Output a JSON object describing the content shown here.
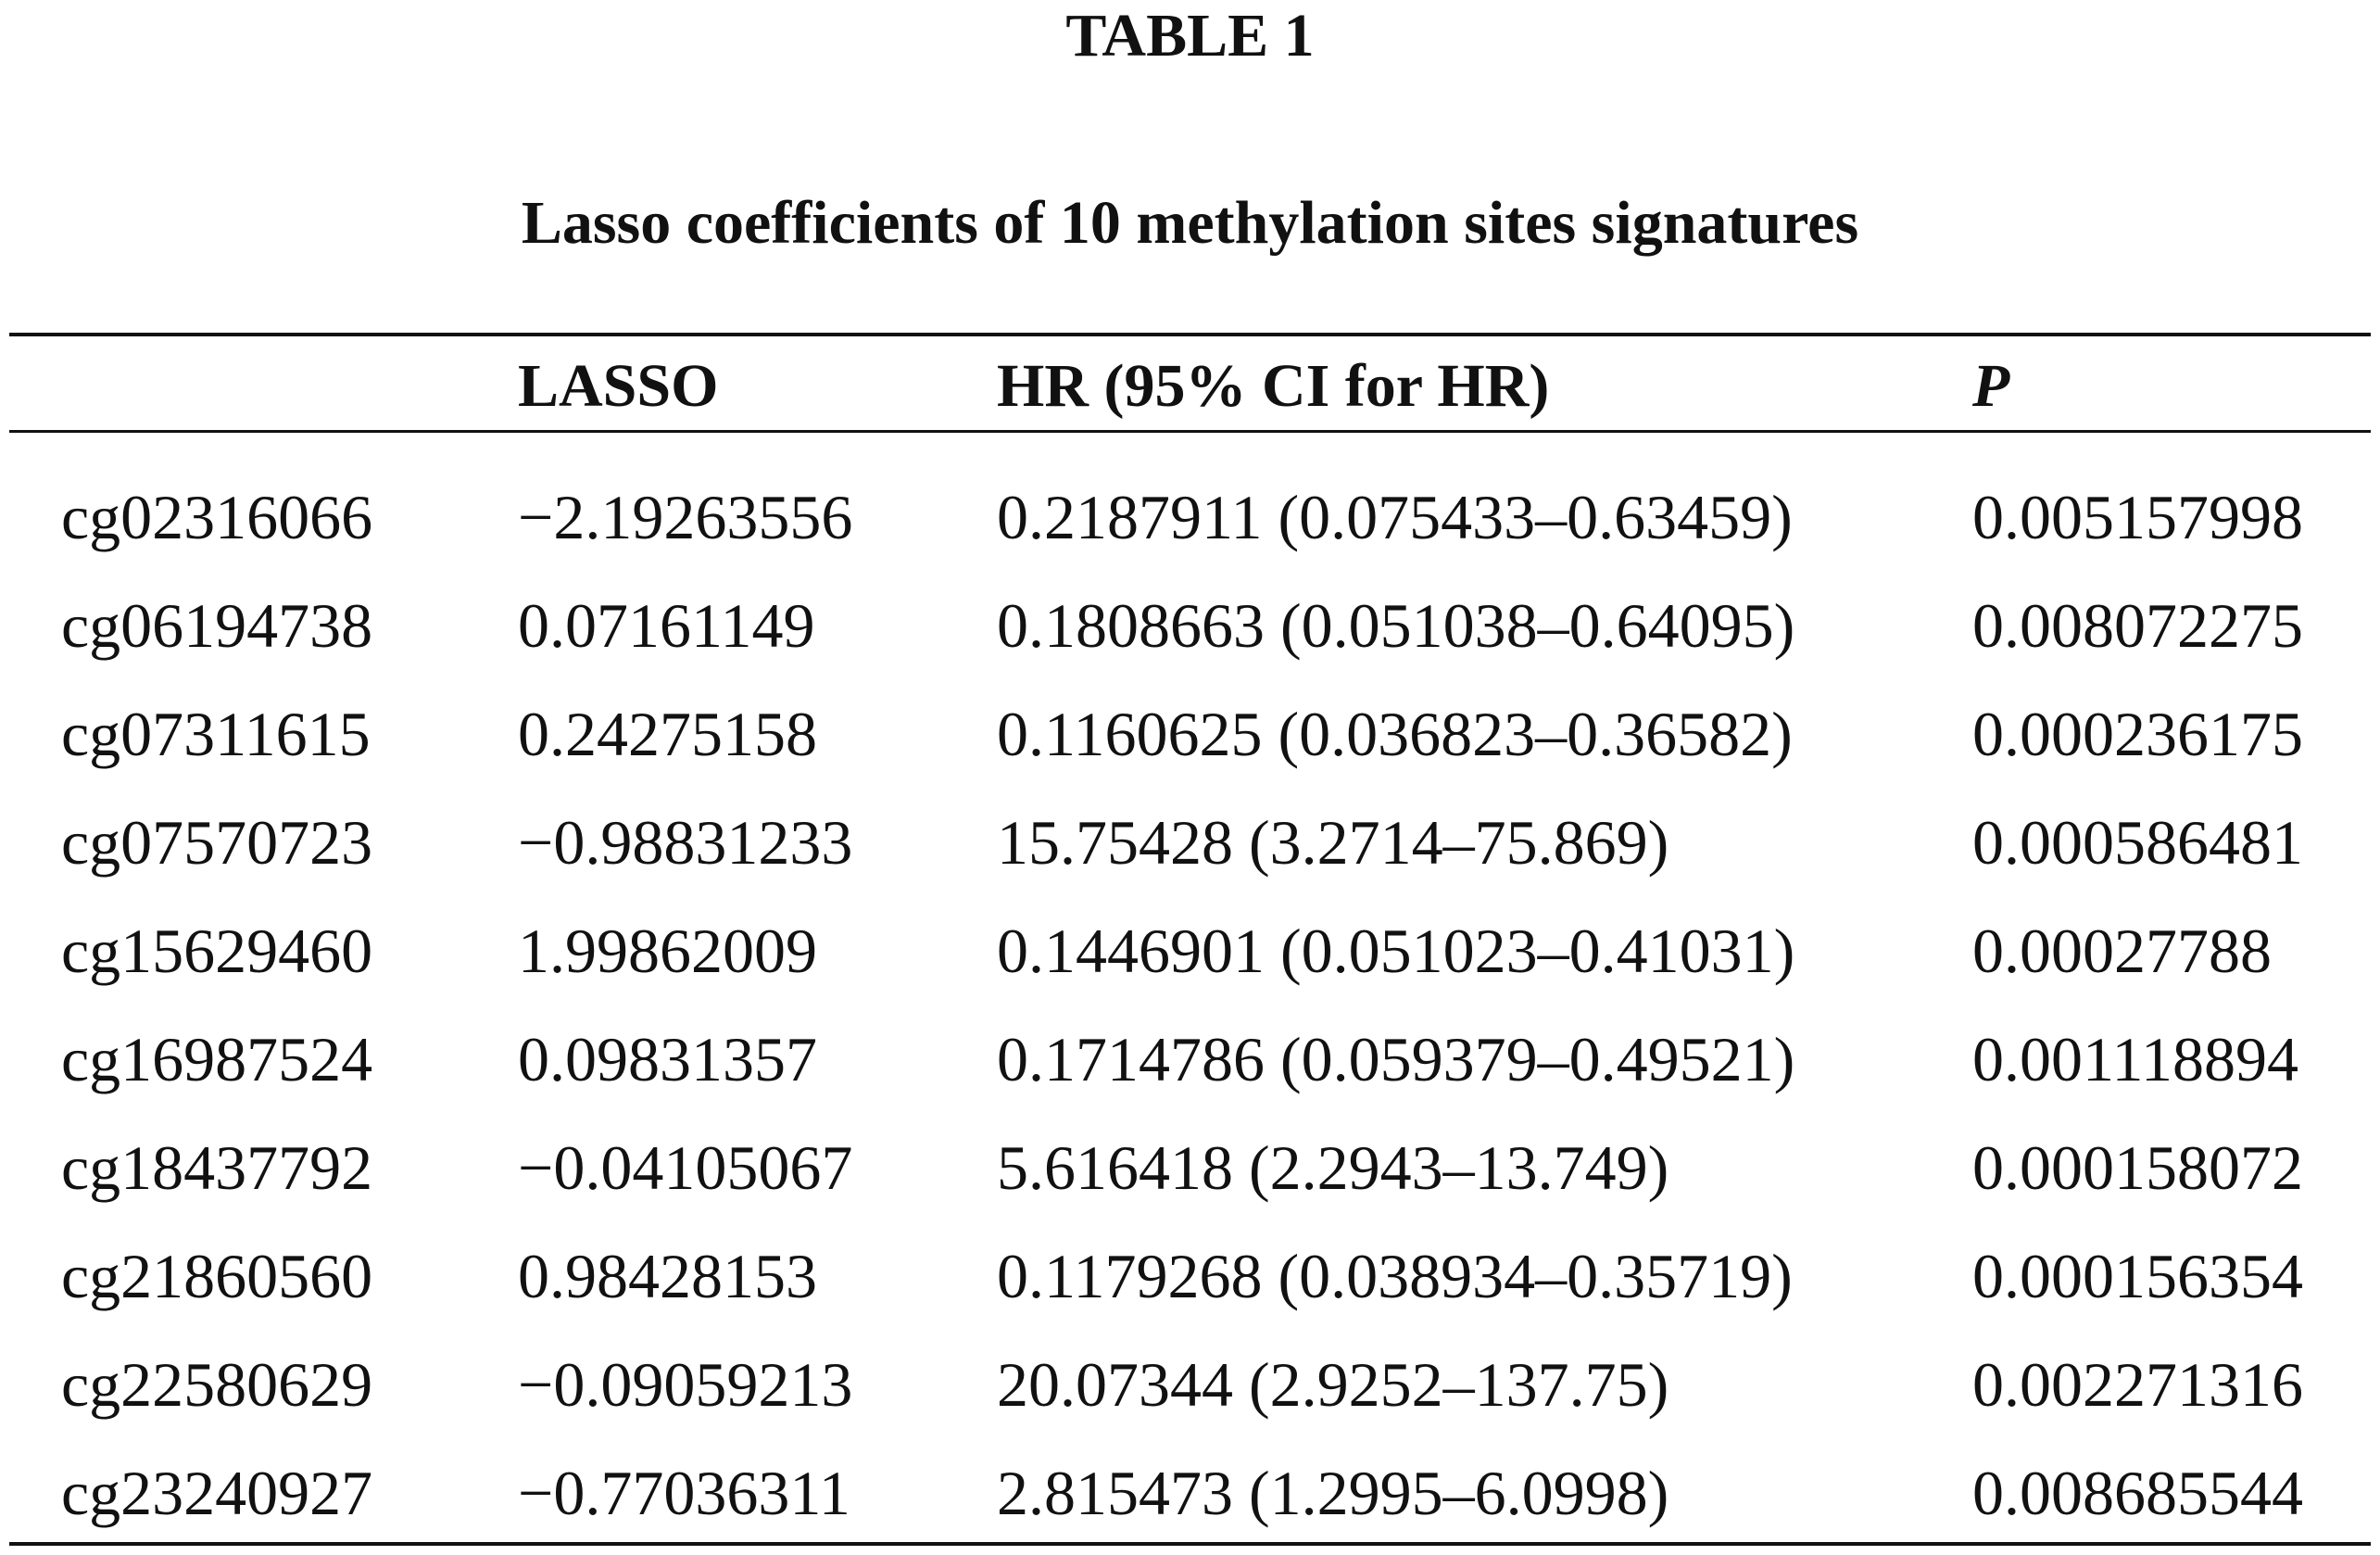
{
  "header": {
    "title": "TABLE 1",
    "subtitle": "Lasso coefficients of 10 methylation sites signatures"
  },
  "table": {
    "columns": [
      "LASSO",
      "HR (95% CI for HR)",
      "P"
    ],
    "rows": [
      [
        "cg02316066",
        "−2.19263556",
        "0.2187911 (0.075433–0.63459)",
        "0.005157998"
      ],
      [
        "cg06194738",
        "0.07161149",
        "0.1808663 (0.051038–0.64095)",
        "0.008072275"
      ],
      [
        "cg07311615",
        "0.24275158",
        "0.1160625 (0.036823–0.36582)",
        "0.000236175"
      ],
      [
        "cg07570723",
        "−0.98831233",
        "15.75428 (3.2714–75.869)",
        "0.000586481"
      ],
      [
        "cg15629460",
        "1.99862009",
        "0.1446901 (0.051023–0.41031)",
        "0.00027788"
      ],
      [
        "cg16987524",
        "0.09831357",
        "0.1714786 (0.059379–0.49521)",
        "0.001118894"
      ],
      [
        "cg18437792",
        "−0.04105067",
        "5.616418 (2.2943–13.749)",
        "0.000158072"
      ],
      [
        "cg21860560",
        "0.98428153",
        "0.1179268 (0.038934–0.35719)",
        "0.000156354"
      ],
      [
        "cg22580629",
        "−0.09059213",
        "20.07344 (2.9252–137.75)",
        "0.002271316"
      ],
      [
        "cg23240927",
        "−0.77036311",
        "2.815473 (1.2995–6.0998)",
        "0.008685544"
      ]
    ]
  }
}
